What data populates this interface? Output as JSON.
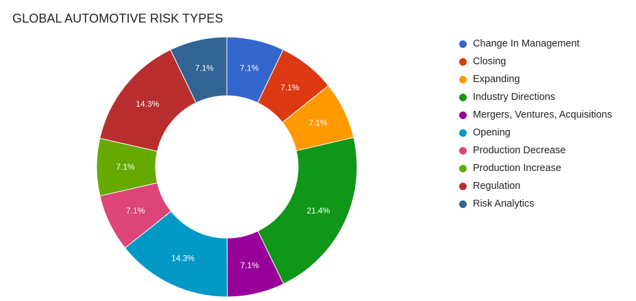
{
  "title": "GLOBAL AUTOMOTIVE RISK TYPES",
  "chart_data": {
    "type": "pie",
    "style": "donut",
    "title": "GLOBAL AUTOMOTIVE RISK TYPES",
    "legend_position": "right",
    "unit": "%",
    "slices": [
      {
        "name": "Change In Management",
        "value": 7.1,
        "label": "7.1%",
        "color": "#3366CC"
      },
      {
        "name": "Closing",
        "value": 7.1,
        "label": "7.1%",
        "color": "#DC3912"
      },
      {
        "name": "Expanding",
        "value": 7.1,
        "label": "7.1%",
        "color": "#FF9900"
      },
      {
        "name": "Industry Directions",
        "value": 21.4,
        "label": "21.4%",
        "color": "#109618"
      },
      {
        "name": "Mergers, Ventures, Acquisitions",
        "value": 7.1,
        "label": "7.1%",
        "color": "#990099"
      },
      {
        "name": "Opening",
        "value": 14.3,
        "label": "14.3%",
        "color": "#0099C6"
      },
      {
        "name": "Production Decrease",
        "value": 7.1,
        "label": "7.1%",
        "color": "#DD4477"
      },
      {
        "name": "Production Increase",
        "value": 7.1,
        "label": "7.1%",
        "color": "#66AA00"
      },
      {
        "name": "Regulation",
        "value": 14.3,
        "label": "14.3%",
        "color": "#B82E2E"
      },
      {
        "name": "Risk Analytics",
        "value": 7.1,
        "label": "7.1%",
        "color": "#316395"
      }
    ]
  }
}
